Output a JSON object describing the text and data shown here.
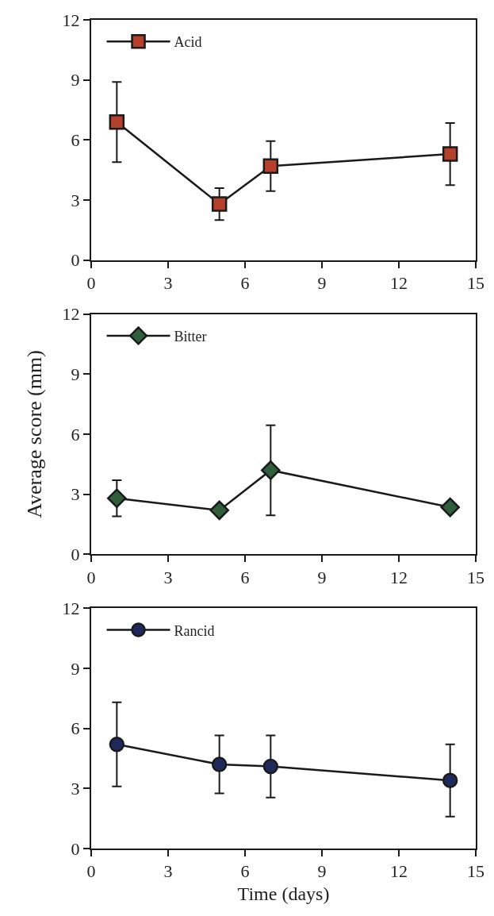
{
  "chart_data": [
    {
      "type": "line",
      "x": [
        1,
        5,
        7,
        14
      ],
      "xlim": [
        0,
        15
      ],
      "xticks": [
        0,
        3,
        6,
        9,
        12,
        15
      ],
      "ylim": [
        0,
        12
      ],
      "yticks": [
        0,
        3,
        6,
        9,
        12
      ],
      "marker": "square",
      "line_style": "solid",
      "legend": "top left",
      "series": [
        {
          "name": "Acid",
          "color": "#b5412c",
          "values": [
            6.9,
            2.8,
            4.7,
            5.3
          ],
          "errors": [
            2.0,
            0.8,
            1.25,
            1.55
          ]
        }
      ]
    },
    {
      "type": "line",
      "x": [
        1,
        5,
        7,
        14
      ],
      "xlim": [
        0,
        15
      ],
      "xticks": [
        0,
        3,
        6,
        9,
        12,
        15
      ],
      "ylim": [
        0,
        12
      ],
      "yticks": [
        0,
        3,
        6,
        9,
        12
      ],
      "ylabel": "Average score (mm)",
      "marker": "diamond",
      "line_style": "solid",
      "legend": "top left",
      "series": [
        {
          "name": "Bitter",
          "color": "#2e5e3a",
          "values": [
            2.8,
            2.2,
            4.2,
            2.35
          ],
          "errors": [
            0.9,
            null,
            2.25,
            null
          ]
        }
      ]
    },
    {
      "type": "line",
      "x": [
        1,
        5,
        7,
        14
      ],
      "xlim": [
        0,
        15
      ],
      "xticks": [
        0,
        3,
        6,
        9,
        12,
        15
      ],
      "ylim": [
        0,
        12
      ],
      "yticks": [
        0,
        3,
        6,
        9,
        12
      ],
      "xlabel": "Time (days)",
      "marker": "circle",
      "line_style": "solid",
      "legend": "top left",
      "series": [
        {
          "name": "Rancid",
          "color": "#1f2a5c",
          "values": [
            5.2,
            4.2,
            4.1,
            3.4
          ],
          "errors": [
            2.1,
            1.45,
            1.55,
            1.8
          ]
        }
      ]
    }
  ]
}
